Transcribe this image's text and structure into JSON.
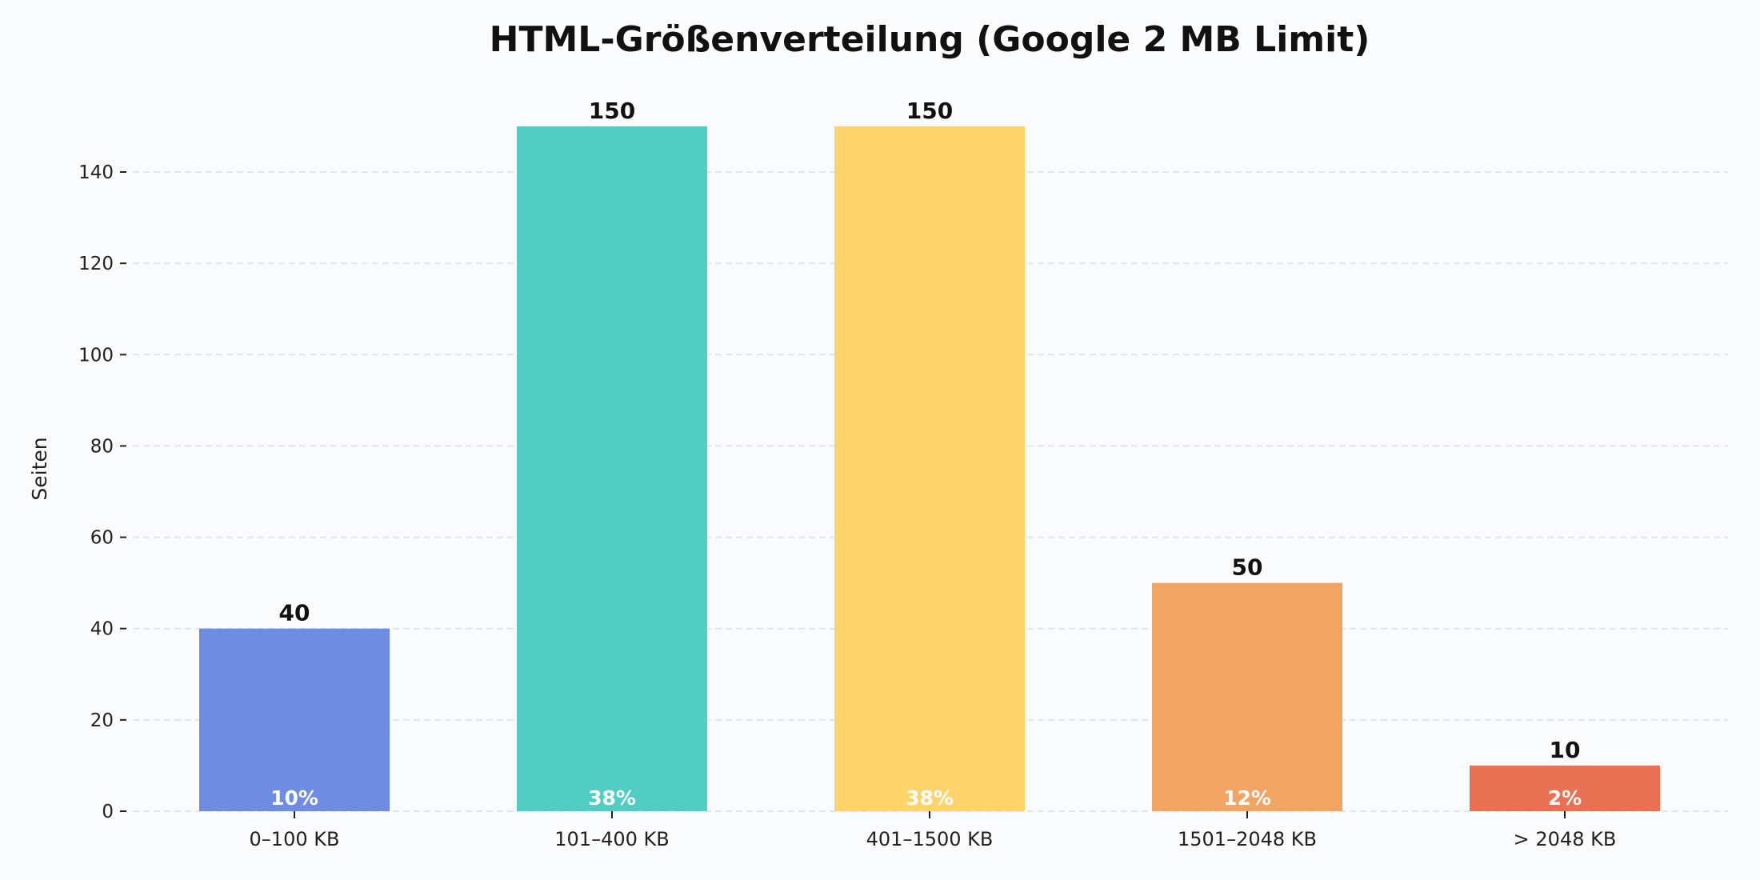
{
  "chart_data": {
    "type": "bar",
    "title": "HTML-Größenverteilung (Google 2 MB Limit)",
    "xlabel": "",
    "ylabel": "Seiten",
    "categories": [
      "0–100 KB",
      "101–400 KB",
      "401–1500 KB",
      "1501–2048 KB",
      "> 2048 KB"
    ],
    "values": [
      40,
      150,
      150,
      50,
      10
    ],
    "percent_labels": [
      "10%",
      "38%",
      "38%",
      "12%",
      "2%"
    ],
    "colors": [
      "#6f8ce3",
      "#52cdc4",
      "#ffd36b",
      "#f2a465",
      "#e87053"
    ],
    "ylim": [
      0,
      150
    ],
    "yticks": [
      "0",
      "20",
      "40",
      "60",
      "80",
      "100",
      "120",
      "140"
    ],
    "grid": true,
    "legend": "none"
  }
}
